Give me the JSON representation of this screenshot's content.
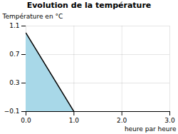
{
  "chart_data": {
    "type": "area",
    "title": "Evolution de la température",
    "x": [
      0,
      1
    ],
    "values": [
      1.0,
      -0.1
    ],
    "xlabel": "heure par heure",
    "ylabel": "Température en °C",
    "xlim": [
      0,
      3
    ],
    "ylim": [
      -0.1,
      1.1
    ],
    "xticks": [
      0,
      1,
      2,
      3
    ],
    "yticks": [
      -0.1,
      0.3,
      0.7,
      1.1
    ],
    "grid": true,
    "color": "#a8d8e8"
  }
}
